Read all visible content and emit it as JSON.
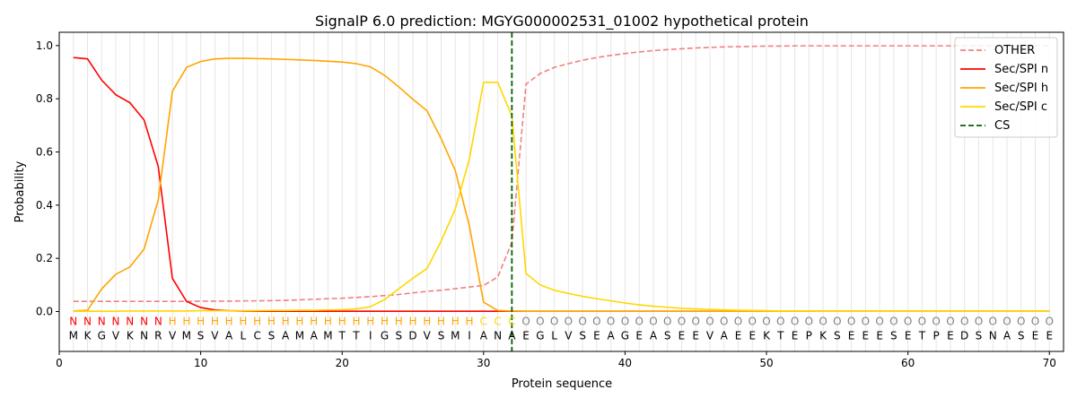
{
  "chart_data": {
    "type": "line",
    "title": "SignalP 6.0 prediction: MGYG000002531_01002 hypothetical protein",
    "xlabel": "Protein sequence",
    "ylabel": "Probability",
    "xlim": [
      0,
      71
    ],
    "ylim": [
      -0.15,
      1.05
    ],
    "xticks": [
      "0",
      "10",
      "20",
      "30",
      "40",
      "50",
      "60",
      "70"
    ],
    "yticks": [
      "0.0",
      "0.2",
      "0.4",
      "0.6",
      "0.8",
      "1.0"
    ],
    "grid": "vertical lines at each residue",
    "legend_position": "top-right",
    "sequence": [
      "M",
      "K",
      "G",
      "V",
      "K",
      "N",
      "R",
      "V",
      "M",
      "S",
      "V",
      "A",
      "L",
      "C",
      "S",
      "A",
      "M",
      "A",
      "M",
      "T",
      "T",
      "I",
      "G",
      "S",
      "D",
      "V",
      "S",
      "M",
      "I",
      "A",
      "N",
      "A",
      "E",
      "G",
      "L",
      "V",
      "S",
      "E",
      "A",
      "G",
      "E",
      "A",
      "S",
      "E",
      "E",
      "V",
      "A",
      "E",
      "E",
      "K",
      "T",
      "E",
      "P",
      "K",
      "S",
      "E",
      "E",
      "E",
      "S",
      "E",
      "T",
      "P",
      "E",
      "D",
      "S",
      "N",
      "A",
      "S",
      "E",
      "E"
    ],
    "labels": [
      "N",
      "N",
      "N",
      "N",
      "N",
      "N",
      "N",
      "H",
      "H",
      "H",
      "H",
      "H",
      "H",
      "H",
      "H",
      "H",
      "H",
      "H",
      "H",
      "H",
      "H",
      "H",
      "H",
      "H",
      "H",
      "H",
      "H",
      "H",
      "H",
      "C",
      "C",
      "C",
      "O",
      "O",
      "O",
      "O",
      "O",
      "O",
      "O",
      "O",
      "O",
      "O",
      "O",
      "O",
      "O",
      "O",
      "O",
      "O",
      "O",
      "O",
      "O",
      "O",
      "O",
      "O",
      "O",
      "O",
      "O",
      "O",
      "O",
      "O",
      "O",
      "O",
      "O",
      "O",
      "O",
      "O",
      "O",
      "O",
      "O",
      "O"
    ],
    "label_colors": {
      "N": "#ff0000",
      "H": "#ffa500",
      "C": "#ffd700",
      "O": "#808080"
    },
    "cs_position": 32,
    "series": [
      {
        "name": "OTHER",
        "color": "#f08080",
        "style": "dashed",
        "values": [
          0.038,
          0.038,
          0.038,
          0.038,
          0.038,
          0.038,
          0.038,
          0.038,
          0.038,
          0.039,
          0.039,
          0.039,
          0.04,
          0.04,
          0.041,
          0.042,
          0.044,
          0.046,
          0.048,
          0.05,
          0.053,
          0.056,
          0.06,
          0.064,
          0.07,
          0.076,
          0.08,
          0.086,
          0.092,
          0.098,
          0.13,
          0.26,
          0.855,
          0.895,
          0.918,
          0.932,
          0.945,
          0.955,
          0.963,
          0.97,
          0.976,
          0.981,
          0.985,
          0.988,
          0.991,
          0.993,
          0.995,
          0.996,
          0.997,
          0.998,
          0.998,
          0.999,
          0.999,
          0.999,
          0.999,
          0.999,
          0.999,
          0.999,
          0.999,
          0.999,
          0.999,
          0.999,
          0.999,
          0.999,
          0.999,
          0.999,
          0.999,
          0.999,
          0.999,
          0.999
        ]
      },
      {
        "name": "Sec/SPI n",
        "color": "#ff0000",
        "style": "solid",
        "values": [
          0.955,
          0.95,
          0.87,
          0.815,
          0.785,
          0.72,
          0.545,
          0.125,
          0.038,
          0.015,
          0.006,
          0.003,
          0.002,
          0.001,
          0.001,
          0.001,
          0.001,
          0.001,
          0.001,
          0.001,
          0.001,
          0.001,
          0.001,
          0.001,
          0.001,
          0.001,
          0.001,
          0.001,
          0.001,
          0.001,
          0.001,
          0.001,
          0.001,
          0.001,
          0.001,
          0.001,
          0.001,
          0.001,
          0.001,
          0.001,
          0.001,
          0.001,
          0.001,
          0.001,
          0.001,
          0.001,
          0.001,
          0.001,
          0.001,
          0.001,
          0.001,
          0.001,
          0.001,
          0.001,
          0.001,
          0.001,
          0.001,
          0.001,
          0.001,
          0.001,
          0.001,
          0.001,
          0.001,
          0.001,
          0.001,
          0.001,
          0.001,
          0.001,
          0.001,
          0.001
        ]
      },
      {
        "name": "Sec/SPI h",
        "color": "#ffa500",
        "style": "solid",
        "values": [
          0.002,
          0.005,
          0.085,
          0.14,
          0.168,
          0.235,
          0.42,
          0.828,
          0.918,
          0.94,
          0.95,
          0.952,
          0.952,
          0.951,
          0.95,
          0.948,
          0.946,
          0.944,
          0.941,
          0.938,
          0.932,
          0.92,
          0.888,
          0.845,
          0.798,
          0.755,
          0.65,
          0.53,
          0.32,
          0.035,
          0.004,
          0.002,
          0.001,
          0.001,
          0.001,
          0.001,
          0.001,
          0.001,
          0.001,
          0.001,
          0.001,
          0.001,
          0.001,
          0.001,
          0.001,
          0.001,
          0.001,
          0.001,
          0.001,
          0.001,
          0.001,
          0.001,
          0.001,
          0.001,
          0.001,
          0.001,
          0.001,
          0.001,
          0.001,
          0.001,
          0.001,
          0.001,
          0.001,
          0.001,
          0.001,
          0.001,
          0.001,
          0.001,
          0.001,
          0.001
        ]
      },
      {
        "name": "Sec/SPI c",
        "color": "#ffd700",
        "style": "solid",
        "values": [
          0.001,
          0.001,
          0.001,
          0.001,
          0.002,
          0.002,
          0.002,
          0.002,
          0.002,
          0.003,
          0.003,
          0.003,
          0.003,
          0.003,
          0.004,
          0.004,
          0.005,
          0.005,
          0.006,
          0.007,
          0.01,
          0.018,
          0.045,
          0.085,
          0.125,
          0.162,
          0.265,
          0.385,
          0.575,
          0.862,
          0.862,
          0.735,
          0.143,
          0.1,
          0.08,
          0.068,
          0.057,
          0.048,
          0.04,
          0.032,
          0.025,
          0.02,
          0.016,
          0.012,
          0.01,
          0.008,
          0.006,
          0.005,
          0.004,
          0.003,
          0.002,
          0.002,
          0.002,
          0.001,
          0.001,
          0.001,
          0.001,
          0.001,
          0.001,
          0.001,
          0.001,
          0.001,
          0.001,
          0.001,
          0.001,
          0.001,
          0.001,
          0.001,
          0.001,
          0.001
        ]
      }
    ],
    "legend": [
      {
        "name": "OTHER",
        "color": "#f08080",
        "style": "dashed"
      },
      {
        "name": "Sec/SPI n",
        "color": "#ff0000",
        "style": "solid"
      },
      {
        "name": "Sec/SPI h",
        "color": "#ffa500",
        "style": "solid"
      },
      {
        "name": "Sec/SPI c",
        "color": "#ffd700",
        "style": "solid"
      },
      {
        "name": "CS",
        "color": "#006400",
        "style": "dashed"
      }
    ]
  }
}
